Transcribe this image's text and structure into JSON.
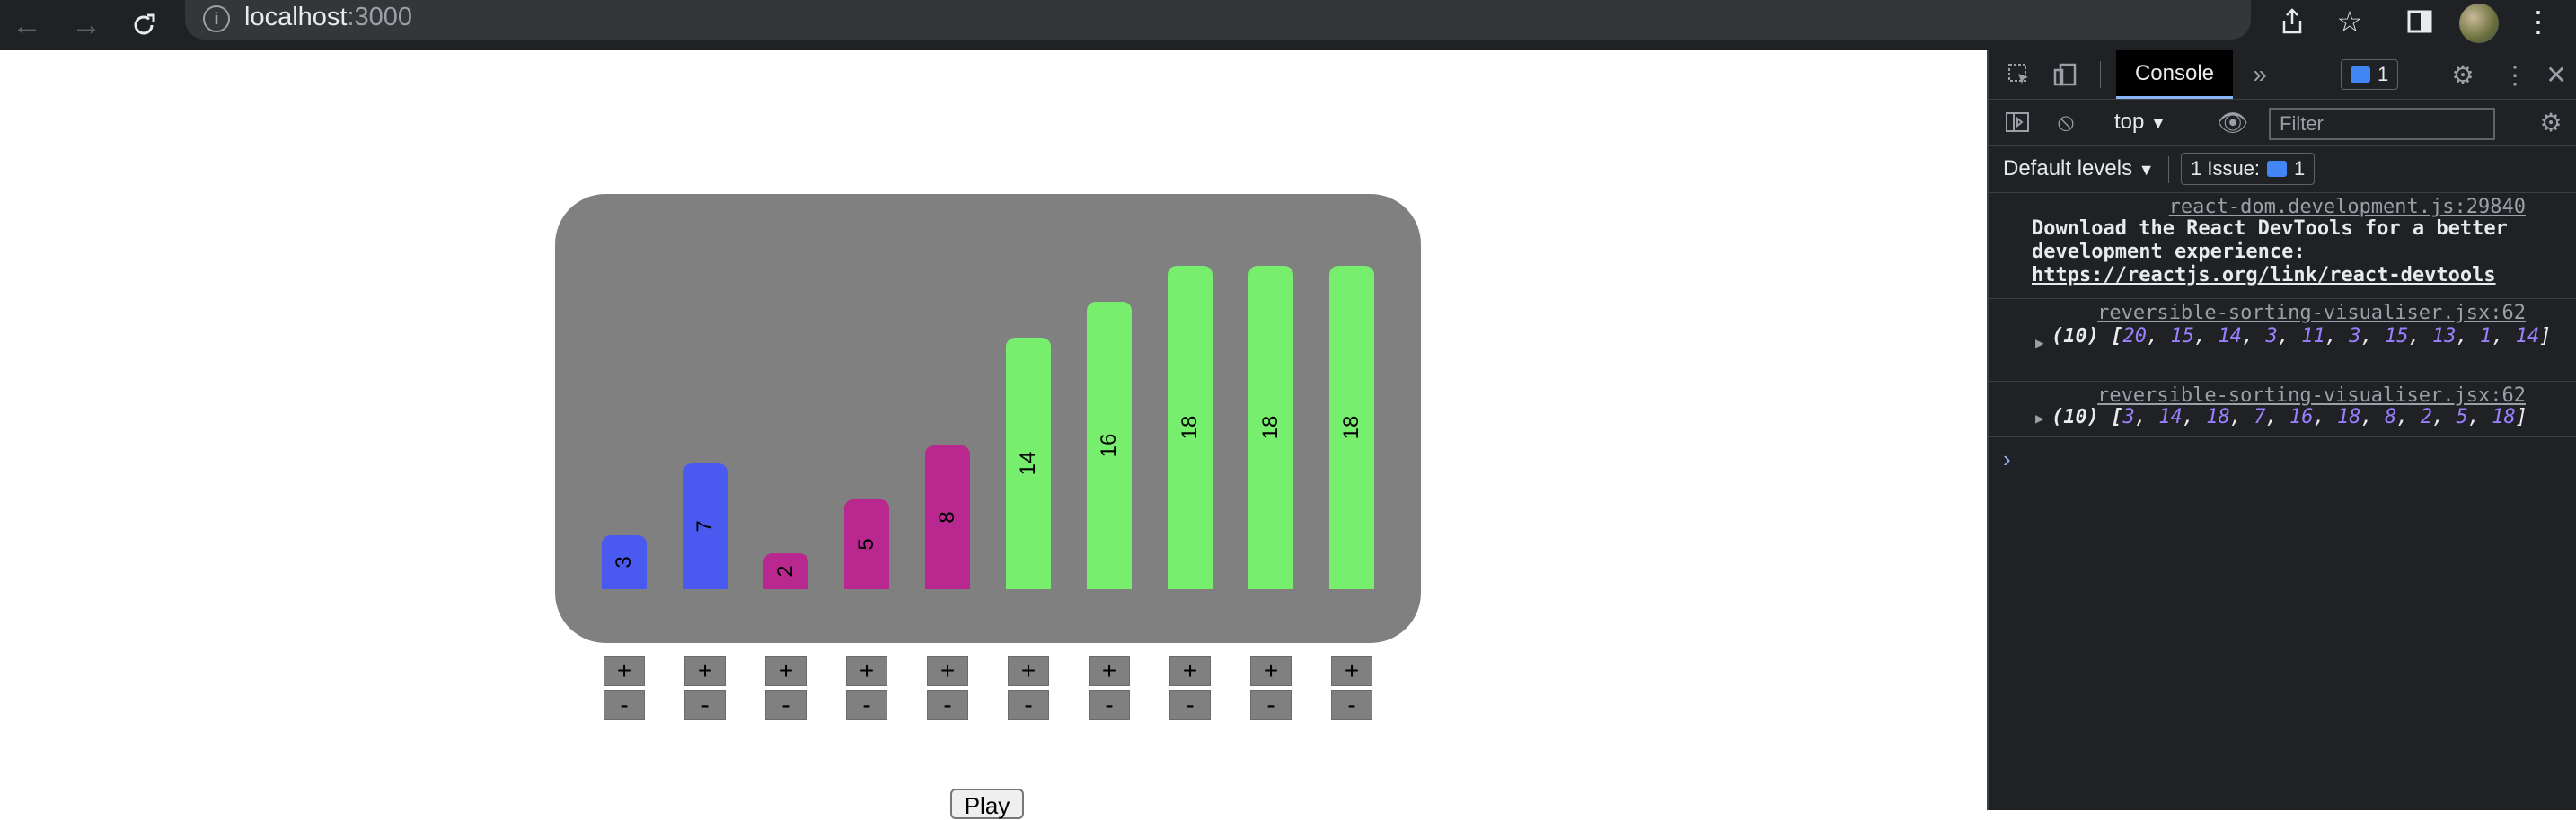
{
  "browser": {
    "url_host": "localhost",
    "url_port": ":3000"
  },
  "visualiser": {
    "bars": [
      {
        "value": 3,
        "color": "#4a5af0"
      },
      {
        "value": 7,
        "color": "#4a5af0"
      },
      {
        "value": 2,
        "color": "#b8288f"
      },
      {
        "value": 5,
        "color": "#b8288f"
      },
      {
        "value": 8,
        "color": "#b8288f"
      },
      {
        "value": 14,
        "color": "#77ee6d"
      },
      {
        "value": 16,
        "color": "#77ee6d"
      },
      {
        "value": 18,
        "color": "#77ee6d"
      },
      {
        "value": 18,
        "color": "#77ee6d"
      },
      {
        "value": 18,
        "color": "#77ee6d"
      }
    ],
    "plus_label": "+",
    "minus_label": "-",
    "play_label": "Play"
  },
  "devtools": {
    "console_tab": "Console",
    "issues_badge": "1",
    "context": "top",
    "filter_placeholder": "Filter",
    "levels": "Default levels",
    "issues_label": "1 Issue:",
    "issues_count": "1",
    "logs": [
      {
        "source": "react-dom.development.js:29840",
        "text": "Download the React DevTools for a better development experience: ",
        "link": "https://reactjs.org/link/react-devtools"
      },
      {
        "source": "reversible-sorting-visualiser.jsx:62",
        "count": "(10)",
        "values": [
          20,
          15,
          14,
          3,
          11,
          3,
          15,
          13,
          1,
          14
        ]
      },
      {
        "source": "reversible-sorting-visualiser.jsx:62",
        "count": "(10)",
        "values": [
          3,
          14,
          18,
          7,
          16,
          18,
          8,
          2,
          5,
          18
        ]
      }
    ],
    "prompt": "›"
  }
}
